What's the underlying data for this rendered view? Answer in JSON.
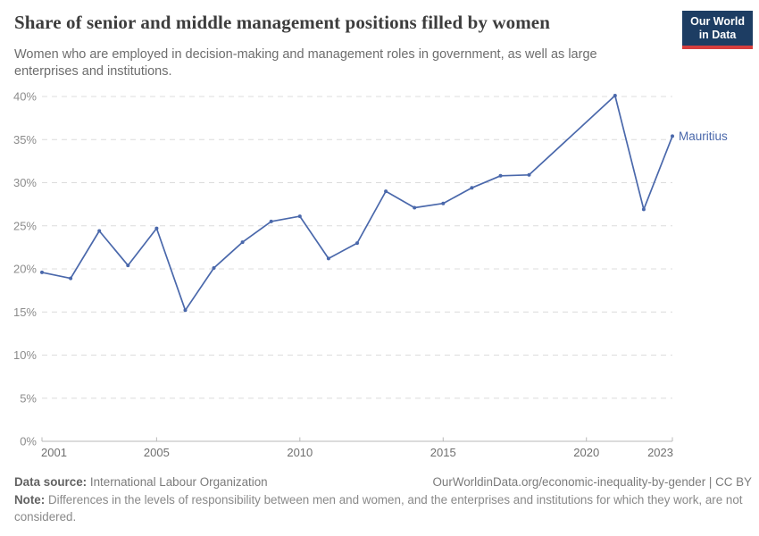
{
  "header": {
    "title": "Share of senior and middle management positions filled by women",
    "subtitle": "Women who are employed in decision-making and management roles in government, as well as large enterprises and institutions.",
    "logo": {
      "line1": "Our World",
      "line2": "in Data"
    }
  },
  "chart_data": {
    "type": "line",
    "title": "Share of senior and middle management positions filled by women",
    "x": [
      2001,
      2002,
      2003,
      2004,
      2005,
      2006,
      2007,
      2008,
      2009,
      2010,
      2011,
      2012,
      2013,
      2014,
      2015,
      2016,
      2017,
      2018,
      2021,
      2022,
      2023
    ],
    "series": [
      {
        "name": "Mauritius",
        "color": "#4a68ab",
        "values": [
          19.6,
          18.9,
          24.4,
          20.4,
          24.7,
          15.2,
          20.1,
          23.1,
          25.5,
          26.1,
          21.2,
          23.0,
          29.0,
          27.1,
          27.6,
          29.4,
          30.8,
          30.9,
          40.1,
          26.9,
          35.4
        ]
      }
    ],
    "xlabel": "",
    "ylabel": "",
    "ylim": [
      0,
      40
    ],
    "y_ticks": [
      {
        "value": 0,
        "label": "0%"
      },
      {
        "value": 5,
        "label": "5%"
      },
      {
        "value": 10,
        "label": "10%"
      },
      {
        "value": 15,
        "label": "15%"
      },
      {
        "value": 20,
        "label": "20%"
      },
      {
        "value": 25,
        "label": "25%"
      },
      {
        "value": 30,
        "label": "30%"
      },
      {
        "value": 35,
        "label": "35%"
      },
      {
        "value": 40,
        "label": "40%"
      }
    ],
    "x_ticks": [
      2001,
      2005,
      2010,
      2015,
      2020,
      2023
    ],
    "grid": "horizontal-dashed",
    "legend_position": "end-of-line-label",
    "end_label": "Mauritius"
  },
  "footer": {
    "data_source_label": "Data source:",
    "data_source_value": "International Labour Organization",
    "attribution": "OurWorldinData.org/economic-inequality-by-gender | CC BY",
    "note_label": "Note:",
    "note_text": "Differences in the levels of responsibility between men and women, and the enterprises and institutions for which they work, are not considered."
  },
  "colors": {
    "line": "#4a68ab",
    "entity_label": "#4a68ab",
    "logo_background": "#1d3d63",
    "logo_stripe": "#d63e3e",
    "axis_line": "#b8b8b8",
    "gridline": "#dcdcdc",
    "y_tick_text": "#8c8c8c",
    "x_tick_text": "#6f6f6f",
    "title_text": "#3d3d3d",
    "subtitle_text": "#6d6d6d"
  }
}
